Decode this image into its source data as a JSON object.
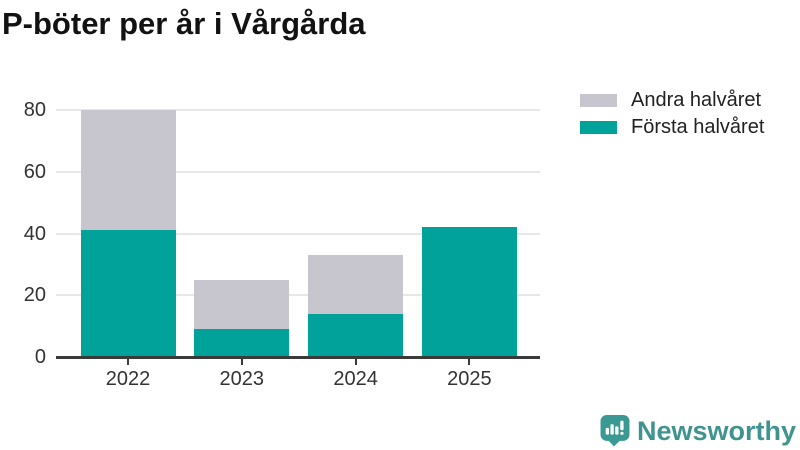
{
  "header": {
    "title": "P-böter per år i Vårgårda"
  },
  "chart_data": {
    "type": "bar",
    "stacked": true,
    "title": "P-böter per år i Vårgårda",
    "categories": [
      "2022",
      "2023",
      "2024",
      "2025"
    ],
    "series": [
      {
        "name": "Första halvåret",
        "color": "#00a29a",
        "values": [
          41,
          9,
          14,
          42
        ]
      },
      {
        "name": "Andra halvåret",
        "color": "#c7c6ce",
        "values": [
          39,
          16,
          19,
          0
        ]
      }
    ],
    "totals": [
      80,
      25,
      33,
      42
    ],
    "xlabel": "",
    "ylabel": "",
    "ylim": [
      0,
      80
    ],
    "yticks": [
      0,
      20,
      40,
      60,
      80
    ],
    "grid": true,
    "legend_position": "top-right"
  },
  "legend": {
    "items": [
      {
        "label": "Andra halvåret",
        "color": "#c7c6ce"
      },
      {
        "label": "Första halvåret",
        "color": "#00a29a"
      }
    ]
  },
  "branding": {
    "logo_text": "Newsworthy",
    "logo_color": "#3f948f"
  },
  "colors": {
    "teal": "#00a29a",
    "gray": "#c7c6ce",
    "axis": "#3a3a3a",
    "gridline": "#e7e7e7",
    "tick_text": "#333333",
    "title_text": "#121212"
  }
}
